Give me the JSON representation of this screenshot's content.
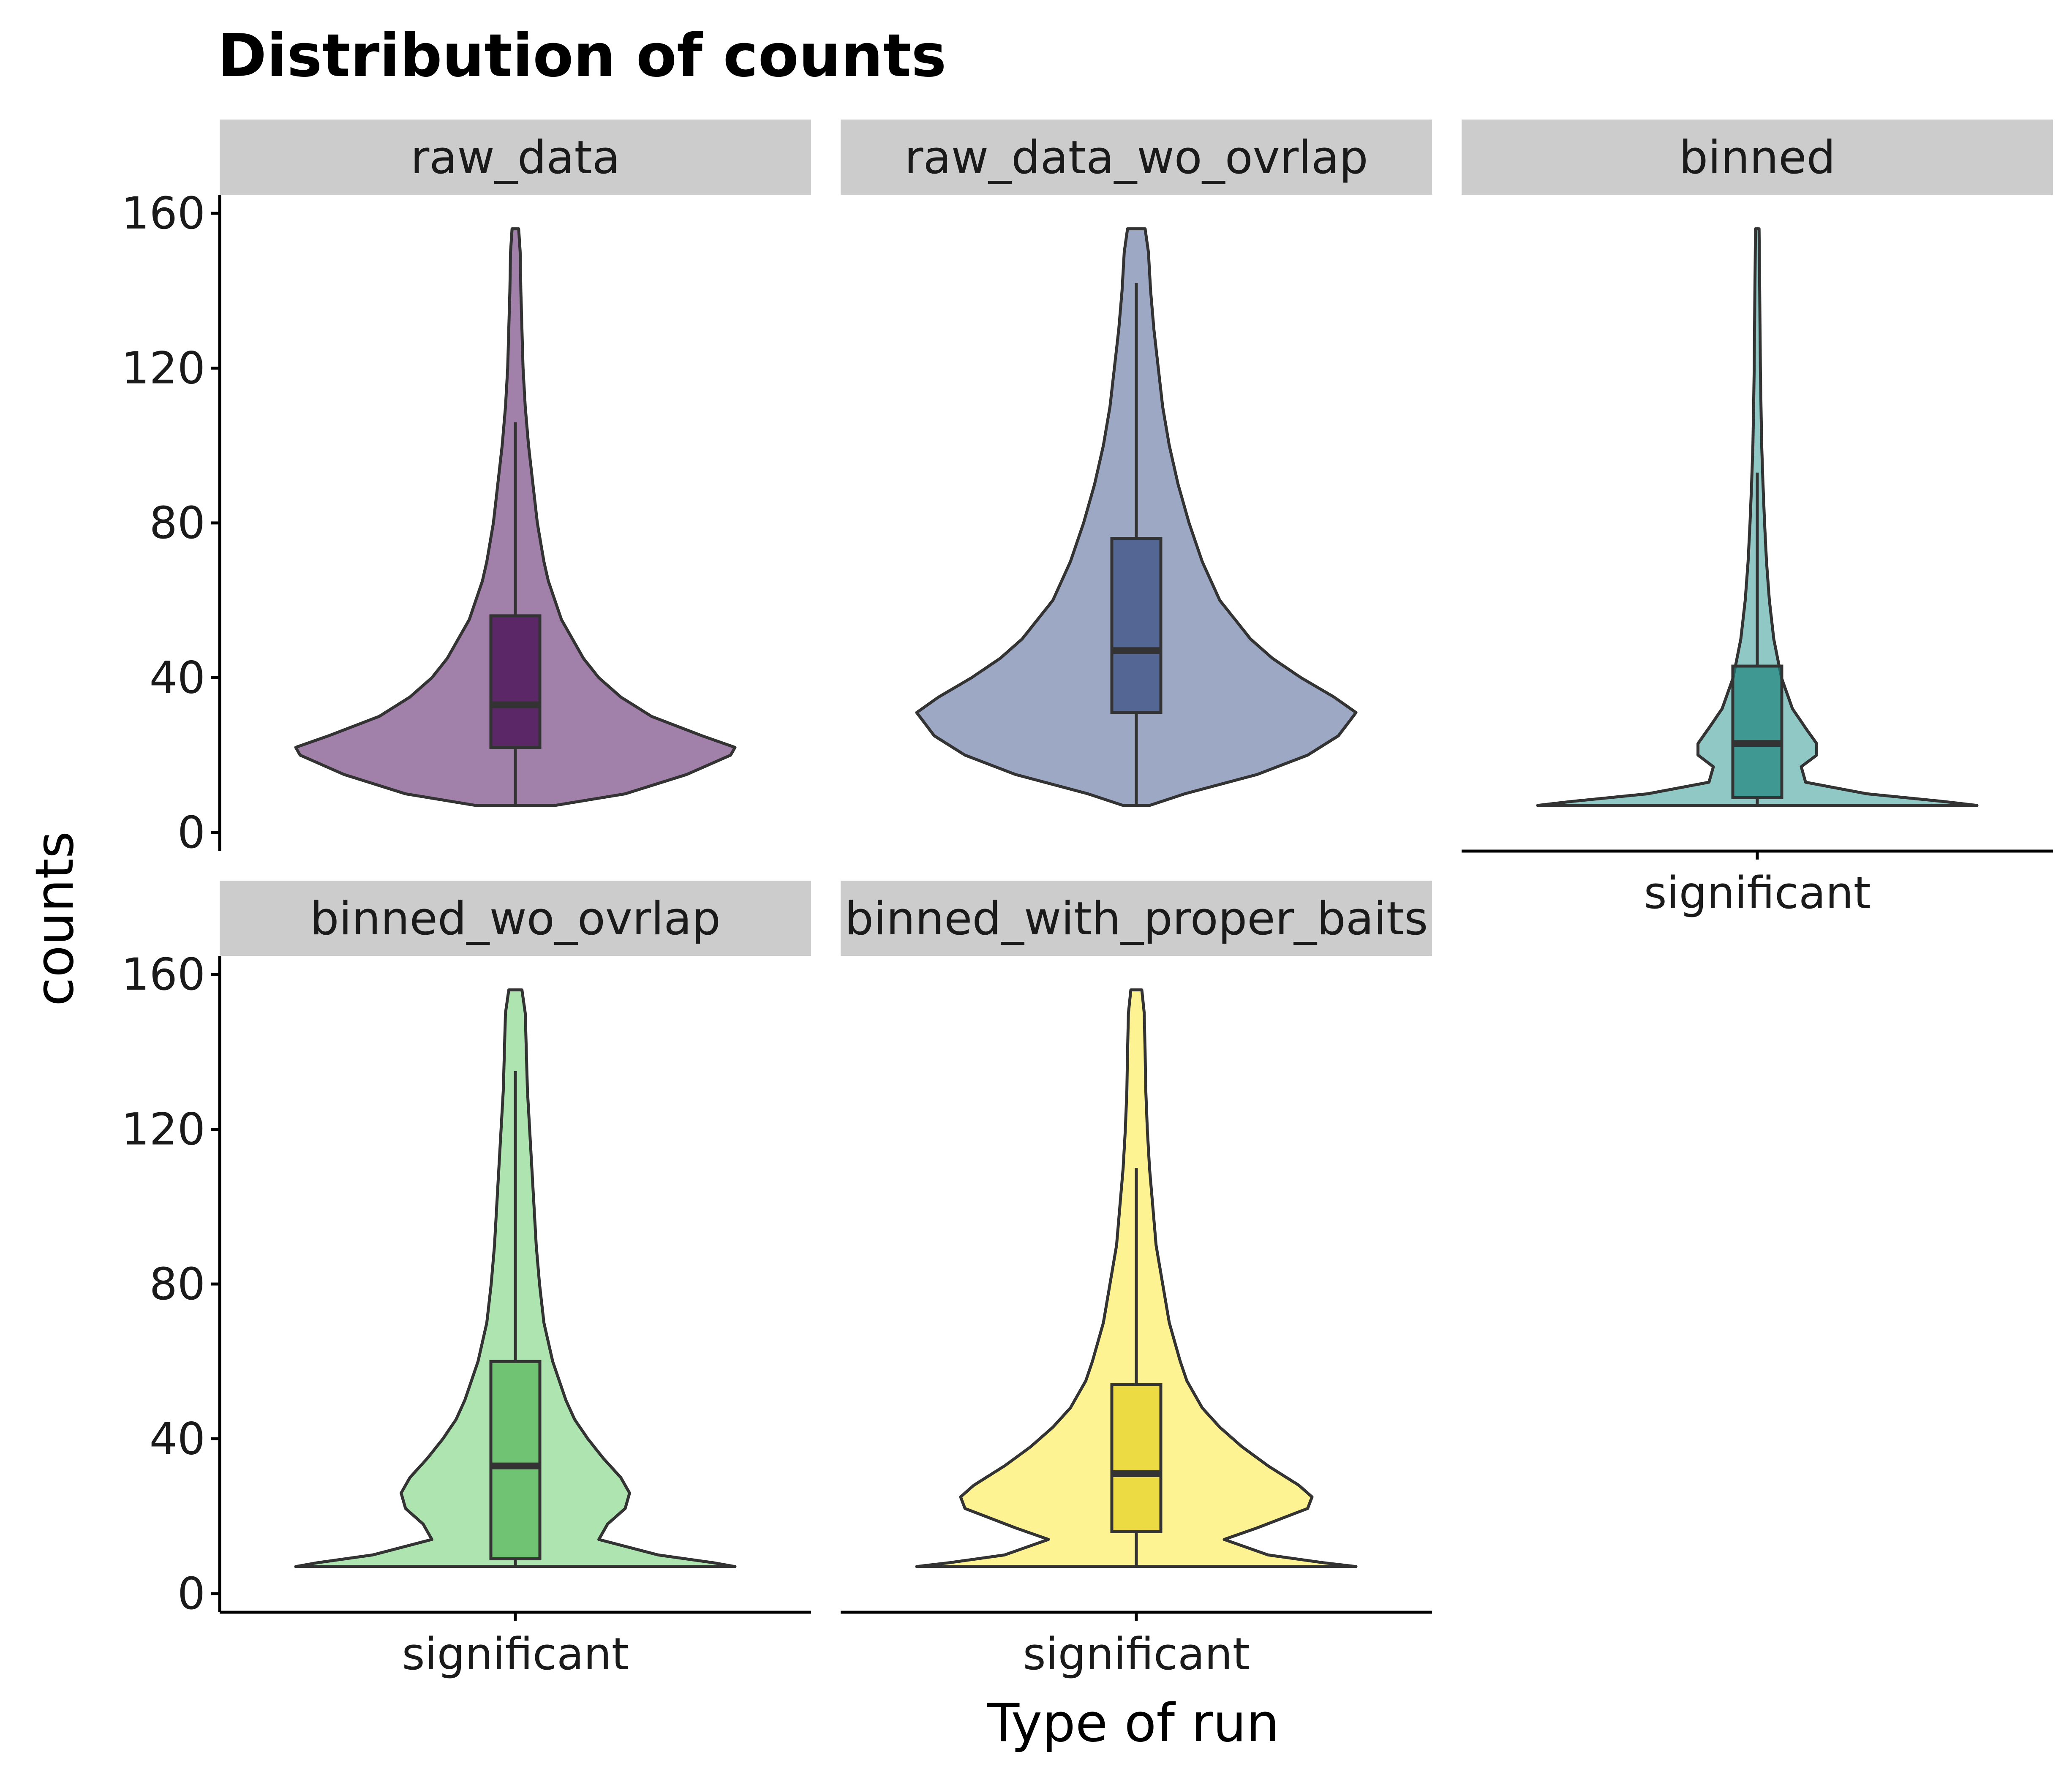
{
  "chart_data": {
    "type": "violin",
    "title": "Distribution of counts",
    "xlabel": "Type of run",
    "ylabel": "counts",
    "ylim": [
      0,
      160
    ],
    "yticks": [
      0,
      40,
      80,
      120,
      160
    ],
    "category": "significant",
    "grid": false,
    "legend": "none",
    "panels": [
      {
        "name": "raw_data",
        "color": "#440154",
        "box": {
          "whisker_low": 7,
          "q1": 22,
          "median": 33,
          "q3": 56,
          "whisker_high": 106
        },
        "violin": [
          [
            7,
            0.18
          ],
          [
            10,
            0.5
          ],
          [
            15,
            0.78
          ],
          [
            20,
            0.98
          ],
          [
            22,
            1.0
          ],
          [
            25,
            0.85
          ],
          [
            30,
            0.62
          ],
          [
            35,
            0.48
          ],
          [
            40,
            0.38
          ],
          [
            45,
            0.31
          ],
          [
            50,
            0.26
          ],
          [
            55,
            0.21
          ],
          [
            60,
            0.18
          ],
          [
            65,
            0.15
          ],
          [
            70,
            0.13
          ],
          [
            80,
            0.1
          ],
          [
            90,
            0.08
          ],
          [
            100,
            0.06
          ],
          [
            110,
            0.045
          ],
          [
            120,
            0.035
          ],
          [
            130,
            0.03
          ],
          [
            140,
            0.025
          ],
          [
            150,
            0.022
          ],
          [
            156,
            0.015
          ]
        ]
      },
      {
        "name": "raw_data_wo_ovrlap",
        "color": "#3b528b",
        "box": {
          "whisker_low": 7,
          "q1": 31,
          "median": 47,
          "q3": 76,
          "whisker_high": 142
        },
        "violin": [
          [
            7,
            0.06
          ],
          [
            10,
            0.22
          ],
          [
            15,
            0.55
          ],
          [
            20,
            0.78
          ],
          [
            25,
            0.92
          ],
          [
            31,
            1.0
          ],
          [
            35,
            0.9
          ],
          [
            40,
            0.75
          ],
          [
            45,
            0.62
          ],
          [
            50,
            0.52
          ],
          [
            55,
            0.45
          ],
          [
            60,
            0.38
          ],
          [
            70,
            0.3
          ],
          [
            80,
            0.24
          ],
          [
            90,
            0.19
          ],
          [
            100,
            0.15
          ],
          [
            110,
            0.12
          ],
          [
            120,
            0.1
          ],
          [
            130,
            0.08
          ],
          [
            140,
            0.065
          ],
          [
            150,
            0.055
          ],
          [
            156,
            0.04
          ]
        ]
      },
      {
        "name": "binned",
        "color": "#21918c",
        "box": {
          "whisker_low": 7,
          "q1": 9,
          "median": 23,
          "q3": 43,
          "whisker_high": 93
        },
        "violin": [
          [
            7,
            1.0
          ],
          [
            8,
            0.85
          ],
          [
            10,
            0.5
          ],
          [
            13,
            0.22
          ],
          [
            17,
            0.2
          ],
          [
            20,
            0.27
          ],
          [
            23,
            0.27
          ],
          [
            27,
            0.22
          ],
          [
            32,
            0.16
          ],
          [
            40,
            0.11
          ],
          [
            50,
            0.075
          ],
          [
            60,
            0.055
          ],
          [
            70,
            0.042
          ],
          [
            80,
            0.033
          ],
          [
            90,
            0.026
          ],
          [
            100,
            0.02
          ],
          [
            110,
            0.017
          ],
          [
            120,
            0.014
          ],
          [
            140,
            0.011
          ],
          [
            156,
            0.008
          ]
        ]
      },
      {
        "name": "binned_wo_ovrlap",
        "color": "#5ec962",
        "box": {
          "whisker_low": 7,
          "q1": 9,
          "median": 33,
          "q3": 60,
          "whisker_high": 135
        },
        "violin": [
          [
            7,
            1.0
          ],
          [
            8,
            0.9
          ],
          [
            10,
            0.65
          ],
          [
            14,
            0.38
          ],
          [
            18,
            0.42
          ],
          [
            22,
            0.5
          ],
          [
            26,
            0.52
          ],
          [
            30,
            0.48
          ],
          [
            35,
            0.4
          ],
          [
            40,
            0.33
          ],
          [
            45,
            0.27
          ],
          [
            50,
            0.23
          ],
          [
            55,
            0.2
          ],
          [
            60,
            0.17
          ],
          [
            70,
            0.13
          ],
          [
            80,
            0.11
          ],
          [
            90,
            0.095
          ],
          [
            100,
            0.085
          ],
          [
            110,
            0.075
          ],
          [
            120,
            0.065
          ],
          [
            130,
            0.055
          ],
          [
            140,
            0.05
          ],
          [
            150,
            0.045
          ],
          [
            156,
            0.03
          ]
        ]
      },
      {
        "name": "binned_with_proper_baits",
        "color": "#fde725",
        "box": {
          "whisker_low": 7,
          "q1": 16,
          "median": 31,
          "q3": 54,
          "whisker_high": 110
        },
        "violin": [
          [
            7,
            1.0
          ],
          [
            8,
            0.85
          ],
          [
            10,
            0.6
          ],
          [
            14,
            0.4
          ],
          [
            17,
            0.55
          ],
          [
            22,
            0.78
          ],
          [
            25,
            0.8
          ],
          [
            28,
            0.74
          ],
          [
            33,
            0.6
          ],
          [
            38,
            0.48
          ],
          [
            43,
            0.38
          ],
          [
            48,
            0.3
          ],
          [
            55,
            0.23
          ],
          [
            60,
            0.2
          ],
          [
            70,
            0.15
          ],
          [
            80,
            0.12
          ],
          [
            90,
            0.09
          ],
          [
            100,
            0.075
          ],
          [
            110,
            0.06
          ],
          [
            120,
            0.05
          ],
          [
            130,
            0.043
          ],
          [
            140,
            0.04
          ],
          [
            150,
            0.036
          ],
          [
            156,
            0.025
          ]
        ]
      }
    ]
  }
}
